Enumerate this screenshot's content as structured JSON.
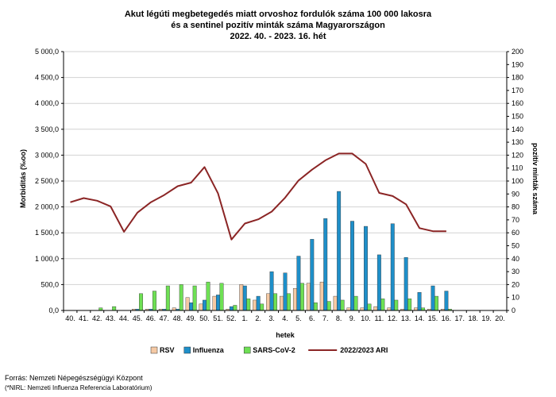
{
  "chart_data": {
    "type": "bar",
    "title_lines": [
      "Akut légúti megbetegedés miatt orvoshoz fordulók száma 100 000 lakosra",
      "és a sentinel pozitív minták száma Magyarországon",
      "2022. 40. - 2023. 16. hét"
    ],
    "xlabel": "hetek",
    "ylabel_left": "Morbiditás (‰oo)",
    "ylabel_right": "pozitív minták száma",
    "ylim_left": [
      0,
      5000
    ],
    "ylim_right": [
      0,
      200
    ],
    "yticks_left": [
      "0,0",
      "500,0",
      "1 000,0",
      "1 500,0",
      "2 000,0",
      "2 500,0",
      "3 000,0",
      "3 500,0",
      "4 000,0",
      "4 500,0",
      "5 000,0"
    ],
    "yticks_right": [
      "0",
      "10",
      "20",
      "30",
      "40",
      "50",
      "60",
      "70",
      "80",
      "90",
      "100",
      "110",
      "120",
      "130",
      "140",
      "150",
      "160",
      "170",
      "180",
      "190",
      "200"
    ],
    "categories": [
      "40.",
      "41.",
      "42.",
      "43.",
      "44.",
      "45.",
      "46.",
      "47.",
      "48.",
      "49.",
      "50.",
      "51.",
      "52.",
      "1.",
      "2.",
      "3.",
      "4.",
      "5.",
      "6.",
      "7.",
      "8.",
      "9.",
      "10.",
      "11.",
      "12.",
      "13.",
      "14.",
      "15.",
      "16.",
      "17.",
      "18.",
      "19.",
      "20."
    ],
    "legend_position": "bottom",
    "series": [
      {
        "name": "RSV",
        "axis": "right",
        "kind": "bar",
        "color": "#f5c9a4",
        "values": [
          0,
          0,
          0,
          0,
          0,
          1,
          1,
          1,
          2,
          10,
          5,
          11,
          1,
          20,
          8,
          13,
          11,
          17,
          21,
          22,
          11,
          2,
          2,
          3,
          2,
          1,
          2,
          1,
          1,
          0,
          0,
          0,
          0
        ]
      },
      {
        "name": "Influenza",
        "axis": "right",
        "kind": "bar",
        "color": "#1e8fc9",
        "values": [
          0,
          0,
          0,
          0,
          0,
          1,
          1,
          1,
          1,
          6,
          8,
          12,
          3,
          19,
          11,
          30,
          29,
          42,
          55,
          71,
          92,
          69,
          65,
          43,
          67,
          41,
          14,
          19,
          15,
          0,
          0,
          0,
          0
        ]
      },
      {
        "name": "SARS-CoV-2",
        "axis": "right",
        "kind": "bar",
        "color": "#6ee054",
        "values": [
          0,
          0,
          2,
          3,
          0,
          13,
          15,
          19,
          20,
          19,
          22,
          21,
          4,
          9,
          5,
          13,
          13,
          21,
          6,
          7,
          8,
          11,
          5,
          9,
          8,
          9,
          2,
          11,
          1,
          0,
          0,
          0,
          0
        ]
      },
      {
        "name": "2022/2023 ARI",
        "axis": "left",
        "kind": "line",
        "color": "#8b2525",
        "values": [
          2090,
          2170,
          2120,
          2010,
          1520,
          1890,
          2090,
          2230,
          2400,
          2470,
          2770,
          2260,
          1370,
          1680,
          1760,
          1910,
          2180,
          2510,
          2720,
          2900,
          3030,
          3030,
          2830,
          2270,
          2210,
          2050,
          1590,
          1530,
          1530,
          null,
          null,
          null,
          null
        ]
      }
    ]
  },
  "footer": {
    "source": "Forrás: Nemzeti Népegészségügyi Központ",
    "note": "(*NIRL: Nemzeti Influenza Referencia Laboratórium)"
  }
}
